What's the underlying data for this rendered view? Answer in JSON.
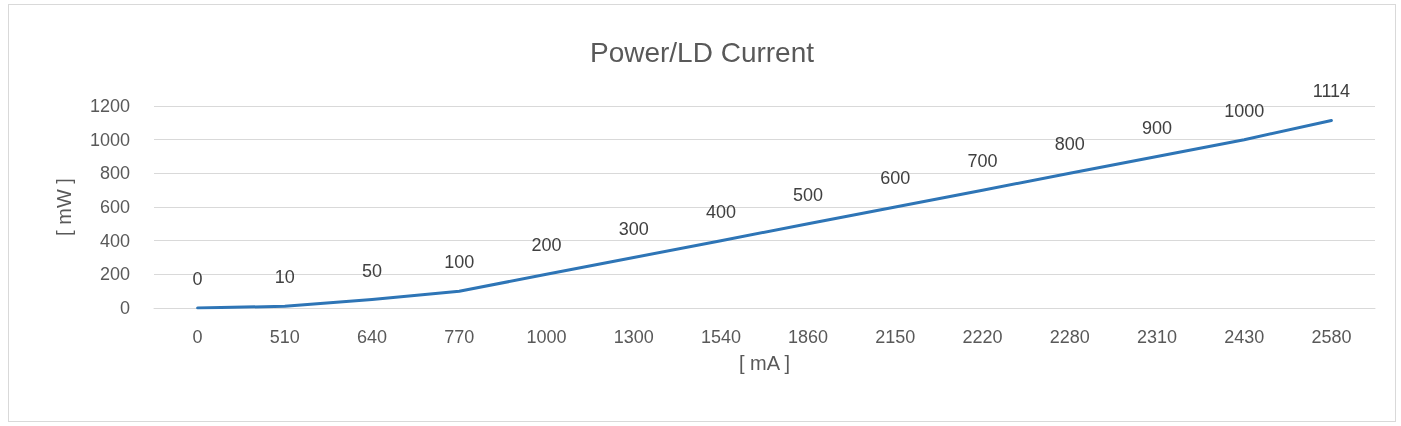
{
  "chart_data": {
    "type": "line",
    "title": "Power/LD Current",
    "xlabel": "[ mA ]",
    "ylabel": "[ mW ]",
    "categories": [
      "0",
      "510",
      "640",
      "770",
      "1000",
      "1300",
      "1540",
      "1860",
      "2150",
      "2220",
      "2280",
      "2310",
      "2430",
      "2580"
    ],
    "values": [
      0,
      10,
      50,
      100,
      200,
      300,
      400,
      500,
      600,
      700,
      800,
      900,
      1000,
      1114
    ],
    "color": "#2e75b6",
    "ylim": [
      0,
      1200
    ],
    "yticks": [
      0,
      200,
      400,
      600,
      800,
      1000,
      1200
    ],
    "grid": "y",
    "marker": "none",
    "line_style": "solid",
    "data_labels": true
  }
}
